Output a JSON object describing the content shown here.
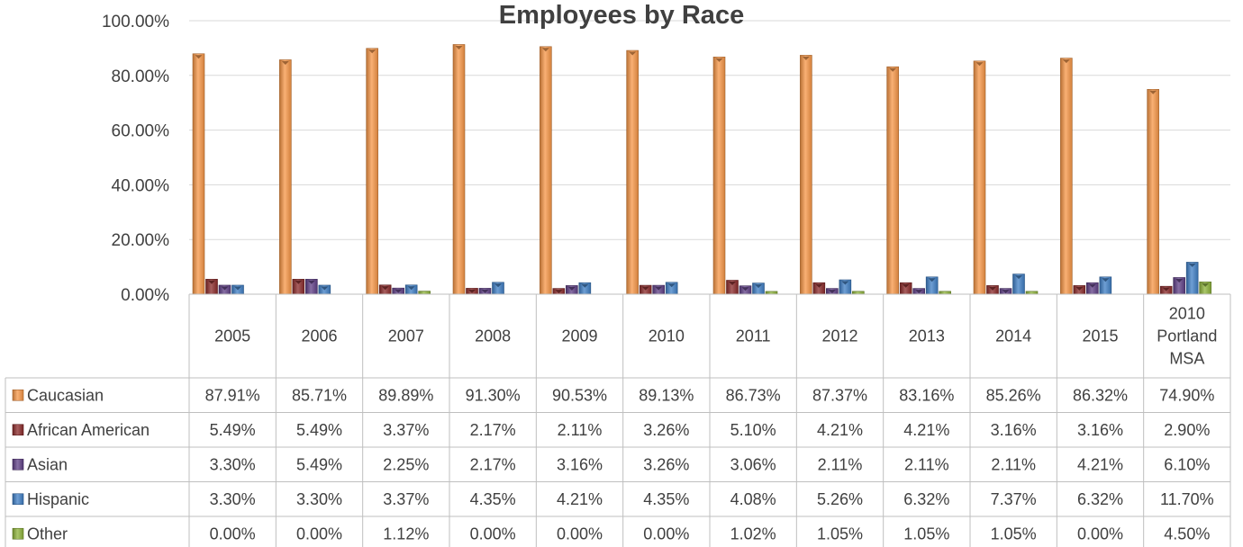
{
  "chart_data": {
    "type": "bar",
    "title": "Employees by Race",
    "categories": [
      "2005",
      "2006",
      "2007",
      "2008",
      "2009",
      "2010",
      "2011",
      "2012",
      "2013",
      "2014",
      "2015",
      "2010 Portland MSA"
    ],
    "category_lines": [
      [
        "2005"
      ],
      [
        "2006"
      ],
      [
        "2007"
      ],
      [
        "2008"
      ],
      [
        "2009"
      ],
      [
        "2010"
      ],
      [
        "2011"
      ],
      [
        "2012"
      ],
      [
        "2013"
      ],
      [
        "2014"
      ],
      [
        "2015"
      ],
      [
        "2010",
        "Portland",
        "MSA"
      ]
    ],
    "y_ticks": [
      "0.00%",
      "20.00%",
      "40.00%",
      "60.00%",
      "80.00%",
      "100.00%"
    ],
    "ylim": [
      0,
      100
    ],
    "grid": true,
    "legend_placement": "data-table",
    "series": [
      {
        "name": "Caucasian",
        "color": "#f79646",
        "values": [
          87.91,
          85.71,
          89.89,
          91.3,
          90.53,
          89.13,
          86.73,
          87.37,
          83.16,
          85.26,
          86.32,
          74.9
        ],
        "labels": [
          "87.91%",
          "85.71%",
          "89.89%",
          "91.30%",
          "90.53%",
          "89.13%",
          "86.73%",
          "87.37%",
          "83.16%",
          "85.26%",
          "86.32%",
          "74.90%"
        ]
      },
      {
        "name": "African American",
        "color": "#8b2a2a",
        "values": [
          5.49,
          5.49,
          3.37,
          2.17,
          2.11,
          3.26,
          5.1,
          4.21,
          4.21,
          3.16,
          3.16,
          2.9
        ],
        "labels": [
          "5.49%",
          "5.49%",
          "3.37%",
          "2.17%",
          "2.11%",
          "3.26%",
          "5.10%",
          "4.21%",
          "4.21%",
          "3.16%",
          "3.16%",
          "2.90%"
        ]
      },
      {
        "name": "Asian",
        "color": "#5f3f86",
        "values": [
          3.3,
          5.49,
          2.25,
          2.17,
          3.16,
          3.26,
          3.06,
          2.11,
          2.11,
          2.11,
          4.21,
          6.1
        ],
        "labels": [
          "3.30%",
          "5.49%",
          "2.25%",
          "2.17%",
          "3.16%",
          "3.26%",
          "3.06%",
          "2.11%",
          "2.11%",
          "2.11%",
          "4.21%",
          "6.10%"
        ]
      },
      {
        "name": "Hispanic",
        "color": "#3f7fc6",
        "values": [
          3.3,
          3.3,
          3.37,
          4.35,
          4.21,
          4.35,
          4.08,
          5.26,
          6.32,
          7.37,
          6.32,
          11.7
        ],
        "labels": [
          "3.30%",
          "3.30%",
          "3.37%",
          "4.35%",
          "4.21%",
          "4.35%",
          "4.08%",
          "5.26%",
          "6.32%",
          "7.37%",
          "6.32%",
          "11.70%"
        ]
      },
      {
        "name": "Other",
        "color": "#8db33a",
        "values": [
          0.0,
          0.0,
          1.12,
          0.0,
          0.0,
          0.0,
          1.02,
          1.05,
          1.05,
          1.05,
          0.0,
          4.5
        ],
        "labels": [
          "0.00%",
          "0.00%",
          "1.12%",
          "0.00%",
          "0.00%",
          "0.00%",
          "1.02%",
          "1.05%",
          "1.05%",
          "1.05%",
          "0.00%",
          "4.50%"
        ]
      }
    ]
  }
}
